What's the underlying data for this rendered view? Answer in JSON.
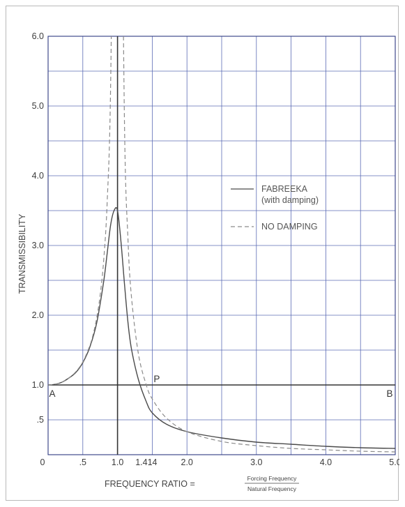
{
  "chart_data": {
    "type": "line",
    "xlabel": "FREQUENCY RATIO =",
    "xlabel_fraction": {
      "numerator": "Forcing Frequency",
      "denominator": "Natural Frequency"
    },
    "ylabel": "TRANSMISSIBILITY",
    "xlim": [
      0,
      5.0
    ],
    "ylim": [
      0,
      6.0
    ],
    "grid": true,
    "x_ticks": [
      {
        "value": 0,
        "label": "0"
      },
      {
        "value": 0.5,
        "label": ".5"
      },
      {
        "value": 1.0,
        "label": "1.0"
      },
      {
        "value": 1.414,
        "label": "1.414"
      },
      {
        "value": 2.0,
        "label": "2.0"
      },
      {
        "value": 3.0,
        "label": "3.0"
      },
      {
        "value": 4.0,
        "label": "4.0"
      },
      {
        "value": 5.0,
        "label": "5.0"
      }
    ],
    "y_ticks": [
      {
        "value": 0.5,
        "label": ".5"
      },
      {
        "value": 1.0,
        "label": "1.0"
      },
      {
        "value": 2.0,
        "label": "2.0"
      },
      {
        "value": 3.0,
        "label": "3.0"
      },
      {
        "value": 4.0,
        "label": "4.0"
      },
      {
        "value": 5.0,
        "label": "5.0"
      },
      {
        "value": 6.0,
        "label": "6.0"
      }
    ],
    "reference_lines": [
      {
        "axis": "x",
        "value": 1.0
      },
      {
        "axis": "y",
        "value": 1.0
      }
    ],
    "series": [
      {
        "name": "FABREEKA\n(with damping)",
        "style": "solid",
        "color": "#4a4a4a",
        "x": [
          0,
          0.1,
          0.2,
          0.3,
          0.4,
          0.5,
          0.6,
          0.7,
          0.8,
          0.85,
          0.9,
          0.95,
          1.0,
          1.05,
          1.1,
          1.15,
          1.2,
          1.3,
          1.414,
          1.5,
          1.7,
          2.0,
          2.5,
          3.0,
          3.5,
          4.0,
          4.5,
          5.0
        ],
        "y": [
          1.0,
          1.01,
          1.04,
          1.1,
          1.18,
          1.32,
          1.54,
          1.89,
          2.48,
          2.88,
          3.29,
          3.5,
          3.5,
          3.05,
          2.45,
          1.9,
          1.52,
          1.08,
          0.76,
          0.6,
          0.44,
          0.33,
          0.24,
          0.18,
          0.15,
          0.12,
          0.1,
          0.09
        ]
      },
      {
        "name": "NO DAMPING",
        "style": "dashed",
        "color": "#8a8a8a",
        "x": [
          0,
          0.1,
          0.2,
          0.3,
          0.4,
          0.5,
          0.6,
          0.65,
          0.7,
          0.75,
          0.8,
          0.85,
          0.9,
          1.1,
          1.15,
          1.2,
          1.3,
          1.414,
          1.5,
          1.7,
          2.0,
          2.5,
          3.0,
          3.5,
          4.0,
          4.5,
          5.0
        ],
        "y": [
          1.0,
          1.01,
          1.04,
          1.1,
          1.19,
          1.33,
          1.56,
          1.73,
          1.96,
          2.29,
          2.78,
          3.6,
          5.26,
          4.76,
          3.1,
          2.27,
          1.45,
          1.0,
          0.8,
          0.53,
          0.33,
          0.19,
          0.13,
          0.09,
          0.07,
          0.05,
          0.04
        ]
      }
    ],
    "annotations": [
      {
        "text": "A",
        "x": 0,
        "y": 1.0
      },
      {
        "text": "B",
        "x": 5.0,
        "y": 1.0
      },
      {
        "text": "P",
        "x": 1.414,
        "y": 1.0
      }
    ],
    "legend_position": "right-middle"
  }
}
